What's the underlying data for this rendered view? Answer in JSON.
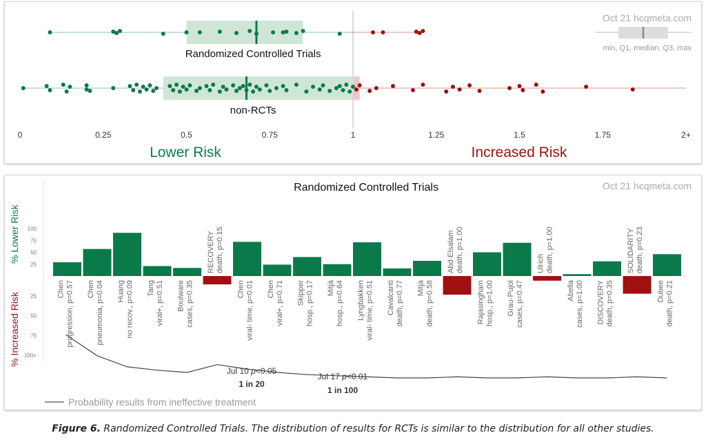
{
  "top_panel": {
    "watermark": "Oct 21 hcqmeta.com",
    "legend_caption": "min, Q1, median, Q3, max",
    "lower_risk_label": "Lower Risk",
    "increased_risk_label": "Increased Risk",
    "colors": {
      "green": "#0b7a4b",
      "red": "#a01010",
      "box_green": "#cfe6d6",
      "box_red": "#f2c6c6"
    }
  },
  "bottom_panel": {
    "title": "Randomized Controlled Trials",
    "watermark": "Oct 21 hcqmeta.com",
    "lower_axis_label": "% Lower Risk",
    "increased_axis_label": "% Increased Risk",
    "prob_legend": "Probability results from ineffective treatment",
    "annotations": [
      {
        "date": "Jul 10",
        "p": "p",
        "threshold": "<0.05",
        "odds": "1 in 20"
      },
      {
        "date": "Jul 17",
        "p": "p",
        "threshold": "<0.01",
        "odds": "1 in 100"
      }
    ]
  },
  "caption": {
    "label": "Figure 6.",
    "text": " Randomized Controlled Trials. The distribution of results for RCTs is similar to the distribution for all other studies."
  },
  "chart_data": [
    {
      "type": "scatter",
      "title": "",
      "x_ticks": [
        "0",
        "0.25",
        "0.5",
        "0.75",
        "1",
        "1.25",
        "1.5",
        "1.75",
        "2+"
      ],
      "xlim": [
        0,
        2
      ],
      "series": [
        {
          "name": "Randomized Controlled Trials",
          "box": {
            "min": 0.09,
            "q1": 0.5,
            "median": 0.71,
            "q3": 0.85,
            "max": 1.21
          },
          "values": [
            0.09,
            0.28,
            0.29,
            0.3,
            0.43,
            0.5,
            0.54,
            0.6,
            0.65,
            0.69,
            0.71,
            0.76,
            0.79,
            0.8,
            0.83,
            0.85,
            0.96,
            1.06,
            1.09,
            1.19,
            1.2,
            1.21
          ]
        },
        {
          "name": "non-RCTs",
          "box": {
            "min": 0.01,
            "q1": 0.43,
            "median": 0.68,
            "q3": 1.02,
            "max": 1.84
          },
          "values": [
            0.01,
            0.08,
            0.09,
            0.13,
            0.14,
            0.15,
            0.2,
            0.2,
            0.21,
            0.28,
            0.33,
            0.34,
            0.35,
            0.36,
            0.37,
            0.38,
            0.39,
            0.4,
            0.41,
            0.45,
            0.46,
            0.47,
            0.48,
            0.49,
            0.5,
            0.51,
            0.53,
            0.54,
            0.56,
            0.57,
            0.58,
            0.6,
            0.61,
            0.62,
            0.64,
            0.65,
            0.66,
            0.67,
            0.68,
            0.69,
            0.7,
            0.71,
            0.72,
            0.74,
            0.75,
            0.77,
            0.79,
            0.8,
            0.83,
            0.86,
            0.88,
            0.9,
            0.91,
            0.93,
            0.95,
            0.96,
            0.97,
            0.98,
            0.99,
            1.0,
            1.01,
            1.02,
            1.05,
            1.07,
            1.12,
            1.18,
            1.21,
            1.28,
            1.3,
            1.32,
            1.35,
            1.38,
            1.47,
            1.5,
            1.51,
            1.55,
            1.57,
            1.7,
            1.84
          ]
        }
      ]
    },
    {
      "type": "bar",
      "title": "Randomized Controlled Trials",
      "ylabel": "% Lower Risk",
      "ylim": [
        -100,
        100
      ],
      "y_ticks": [
        "100",
        "75",
        "50",
        "25",
        "25",
        "50",
        "75",
        "100+"
      ],
      "studies": [
        {
          "name": "Chen",
          "label": "progression, p=0.57",
          "value": 29
        },
        {
          "name": "Chen",
          "label": "pneumonia, p=0.04",
          "value": 57
        },
        {
          "name": "Huang",
          "label": "no recov., p=0.09",
          "value": 91
        },
        {
          "name": "Tang",
          "label": "viral+, p=0.51",
          "value": 21
        },
        {
          "name": "Boulware",
          "label": "cases, p=0.35",
          "value": 17
        },
        {
          "name": "RECOVERY",
          "label": "death, p=0.15",
          "value": -9
        },
        {
          "name": "Chen",
          "label": "viral- time, p=0.01",
          "value": 72
        },
        {
          "name": "Chen",
          "label": "viral+, p=0.71",
          "value": 24
        },
        {
          "name": "Skipper",
          "label": "hosp., p=0.17",
          "value": 40
        },
        {
          "name": "Mitjà",
          "label": "hosp., p=0.64",
          "value": 25
        },
        {
          "name": "Lyngbakken",
          "label": "viral- time, p=0.51",
          "value": 71
        },
        {
          "name": "Cavalcanti",
          "label": "death, p=0.77",
          "value": 16
        },
        {
          "name": "Mitjà",
          "label": "death, p=0.58",
          "value": 32
        },
        {
          "name": "Abd-Elsalam",
          "label": "death, p=1.00",
          "value": -20
        },
        {
          "name": "Rajasingham",
          "label": "hosp., p=1.00",
          "value": 50
        },
        {
          "name": "Grau-Pujol",
          "label": "cases, p=0.47",
          "value": 70
        },
        {
          "name": "Ulrich",
          "label": "death, p=1.00",
          "value": -5
        },
        {
          "name": "Abella",
          "label": "cases, p=1.00",
          "value": 4
        },
        {
          "name": "DISCOVERY",
          "label": "death, p=0.35",
          "value": 31
        },
        {
          "name": "SOLIDARITY",
          "label": "death, p=0.23",
          "value": -19
        },
        {
          "name": "Dubee",
          "label": "death, p=0.21",
          "value": 46
        }
      ],
      "probability_series": {
        "name": "Probability results from ineffective treatment",
        "values": [
          0.57,
          0.38,
          0.28,
          0.25,
          0.23,
          0.3,
          0.26,
          0.23,
          0.21,
          0.2,
          0.19,
          0.18,
          0.18,
          0.19,
          0.18,
          0.18,
          0.19,
          0.18,
          0.18,
          0.19,
          0.18
        ]
      }
    }
  ]
}
